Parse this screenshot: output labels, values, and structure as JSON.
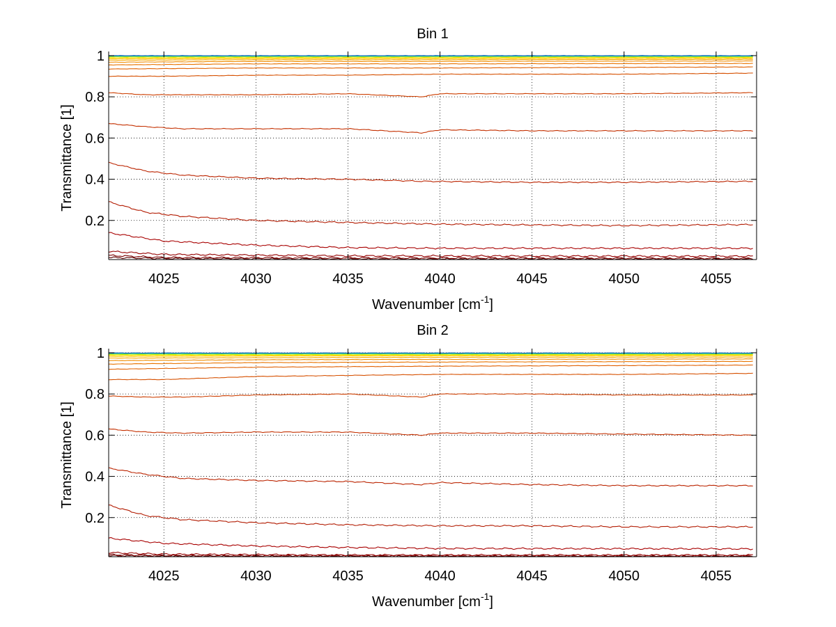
{
  "chart_data": [
    {
      "type": "line",
      "title": "Bin 1",
      "xlabel": "Wavenumber [cm",
      "xlabel_sup": "-1",
      "xlabel_end": "]",
      "ylabel": "Transmittance [1]",
      "xlim": [
        4022,
        4057.2
      ],
      "ylim": [
        0.01,
        1.02
      ],
      "xticks": [
        4025,
        4030,
        4035,
        4040,
        4045,
        4050,
        4055
      ],
      "yticks": [
        0.2,
        0.4,
        0.6,
        0.8,
        1
      ],
      "ytick_labels": [
        "0.2",
        "0.4",
        "0.6",
        "0.8",
        "1"
      ],
      "grid": true,
      "x_range": [
        4022,
        4057
      ],
      "series": [
        {
          "color": "#5a0000",
          "points": [
            [
              4022,
              0.02
            ],
            [
              4025,
              0.015
            ],
            [
              4035,
              0.012
            ],
            [
              4057,
              0.012
            ]
          ]
        },
        {
          "color": "#7a0000",
          "points": [
            [
              4022,
              0.03
            ],
            [
              4025,
              0.02
            ],
            [
              4035,
              0.018
            ],
            [
              4057,
              0.016
            ]
          ]
        },
        {
          "color": "#950000",
          "points": [
            [
              4022,
              0.05
            ],
            [
              4025,
              0.035
            ],
            [
              4035,
              0.028
            ],
            [
              4057,
              0.026
            ]
          ]
        },
        {
          "color": "#a80000",
          "points": [
            [
              4022,
              0.14
            ],
            [
              4025,
              0.1
            ],
            [
              4030,
              0.08
            ],
            [
              4035,
              0.068
            ],
            [
              4040,
              0.065
            ],
            [
              4057,
              0.065
            ]
          ]
        },
        {
          "color": "#b21a00",
          "points": [
            [
              4022,
              0.29
            ],
            [
              4024,
              0.24
            ],
            [
              4026,
              0.22
            ],
            [
              4030,
              0.2
            ],
            [
              4035,
              0.19
            ],
            [
              4040,
              0.182
            ],
            [
              4045,
              0.178
            ],
            [
              4050,
              0.175
            ],
            [
              4057,
              0.18
            ]
          ]
        },
        {
          "color": "#bb2400",
          "points": [
            [
              4022,
              0.48
            ],
            [
              4024,
              0.44
            ],
            [
              4026,
              0.42
            ],
            [
              4030,
              0.405
            ],
            [
              4035,
              0.4
            ],
            [
              4039,
              0.39
            ],
            [
              4045,
              0.385
            ],
            [
              4050,
              0.385
            ],
            [
              4057,
              0.39
            ]
          ]
        },
        {
          "color": "#c43000",
          "points": [
            [
              4022,
              0.67
            ],
            [
              4024,
              0.655
            ],
            [
              4026,
              0.645
            ],
            [
              4030,
              0.645
            ],
            [
              4035,
              0.645
            ],
            [
              4039,
              0.625
            ],
            [
              4040,
              0.64
            ],
            [
              4045,
              0.635
            ],
            [
              4050,
              0.635
            ],
            [
              4057,
              0.635
            ]
          ]
        },
        {
          "color": "#cc3e00",
          "points": [
            [
              4022,
              0.82
            ],
            [
              4024,
              0.81
            ],
            [
              4026,
              0.81
            ],
            [
              4030,
              0.81
            ],
            [
              4035,
              0.815
            ],
            [
              4039,
              0.8
            ],
            [
              4040,
              0.815
            ],
            [
              4045,
              0.815
            ],
            [
              4050,
              0.815
            ],
            [
              4057,
              0.82
            ]
          ]
        },
        {
          "color": "#d65000",
          "points": [
            [
              4022,
              0.9
            ],
            [
              4025,
              0.9
            ],
            [
              4030,
              0.905
            ],
            [
              4035,
              0.905
            ],
            [
              4040,
              0.91
            ],
            [
              4045,
              0.91
            ],
            [
              4050,
              0.91
            ],
            [
              4057,
              0.915
            ]
          ]
        },
        {
          "color": "#e06000",
          "points": [
            [
              4022,
              0.935
            ],
            [
              4030,
              0.94
            ],
            [
              4040,
              0.94
            ],
            [
              4057,
              0.945
            ]
          ]
        },
        {
          "color": "#e87400",
          "points": [
            [
              4022,
              0.955
            ],
            [
              4030,
              0.96
            ],
            [
              4040,
              0.96
            ],
            [
              4057,
              0.962
            ]
          ]
        },
        {
          "color": "#f08c00",
          "points": [
            [
              4022,
              0.968
            ],
            [
              4030,
              0.972
            ],
            [
              4040,
              0.972
            ],
            [
              4057,
              0.974
            ]
          ]
        },
        {
          "color": "#f7a800",
          "points": [
            [
              4022,
              0.978
            ],
            [
              4030,
              0.98
            ],
            [
              4040,
              0.98
            ],
            [
              4057,
              0.982
            ]
          ]
        },
        {
          "color": "#fcc800",
          "points": [
            [
              4022,
              0.985
            ],
            [
              4030,
              0.986
            ],
            [
              4040,
              0.986
            ],
            [
              4057,
              0.987
            ]
          ]
        },
        {
          "color": "#ffe000",
          "points": [
            [
              4022,
              0.99
            ],
            [
              4030,
              0.99
            ],
            [
              4040,
              0.99
            ],
            [
              4057,
              0.991
            ]
          ]
        },
        {
          "color": "#c8f000",
          "points": [
            [
              4022,
              0.994
            ],
            [
              4057,
              0.994
            ]
          ]
        },
        {
          "color": "#70e060",
          "points": [
            [
              4022,
              0.996
            ],
            [
              4057,
              0.996
            ]
          ]
        },
        {
          "color": "#20c8c8",
          "points": [
            [
              4022,
              0.998
            ],
            [
              4057,
              0.998
            ]
          ]
        },
        {
          "color": "#1060b0",
          "points": [
            [
              4022,
              1.0
            ],
            [
              4057,
              1.0
            ]
          ]
        }
      ]
    },
    {
      "type": "line",
      "title": "Bin 2",
      "xlabel": "Wavenumber [cm",
      "xlabel_sup": "-1",
      "xlabel_end": "]",
      "ylabel": "Transmittance [1]",
      "xlim": [
        4022,
        4057.2
      ],
      "ylim": [
        0.01,
        1.02
      ],
      "xticks": [
        4025,
        4030,
        4035,
        4040,
        4045,
        4050,
        4055
      ],
      "yticks": [
        0.2,
        0.4,
        0.6,
        0.8,
        1
      ],
      "ytick_labels": [
        "0.2",
        "0.4",
        "0.6",
        "0.8",
        "1"
      ],
      "grid": true,
      "x_range": [
        4022,
        4057
      ],
      "series": [
        {
          "color": "#5a0000",
          "points": [
            [
              4022,
              0.015
            ],
            [
              4025,
              0.012
            ],
            [
              4057,
              0.01
            ]
          ]
        },
        {
          "color": "#7a0000",
          "points": [
            [
              4022,
              0.02
            ],
            [
              4025,
              0.016
            ],
            [
              4057,
              0.014
            ]
          ]
        },
        {
          "color": "#950000",
          "points": [
            [
              4022,
              0.03
            ],
            [
              4025,
              0.022
            ],
            [
              4035,
              0.018
            ],
            [
              4057,
              0.018
            ]
          ]
        },
        {
          "color": "#a80000",
          "points": [
            [
              4022,
              0.1
            ],
            [
              4025,
              0.075
            ],
            [
              4030,
              0.062
            ],
            [
              4035,
              0.055
            ],
            [
              4040,
              0.05
            ],
            [
              4057,
              0.048
            ]
          ]
        },
        {
          "color": "#b21a00",
          "points": [
            [
              4022,
              0.26
            ],
            [
              4024,
              0.21
            ],
            [
              4026,
              0.19
            ],
            [
              4030,
              0.175
            ],
            [
              4035,
              0.165
            ],
            [
              4040,
              0.16
            ],
            [
              4045,
              0.16
            ],
            [
              4050,
              0.155
            ],
            [
              4057,
              0.155
            ]
          ]
        },
        {
          "color": "#bb2400",
          "points": [
            [
              4022,
              0.44
            ],
            [
              4024,
              0.41
            ],
            [
              4026,
              0.39
            ],
            [
              4030,
              0.38
            ],
            [
              4035,
              0.375
            ],
            [
              4039,
              0.36
            ],
            [
              4040,
              0.37
            ],
            [
              4045,
              0.36
            ],
            [
              4050,
              0.355
            ],
            [
              4057,
              0.355
            ]
          ]
        },
        {
          "color": "#c43000",
          "points": [
            [
              4022,
              0.63
            ],
            [
              4024,
              0.615
            ],
            [
              4026,
              0.61
            ],
            [
              4030,
              0.615
            ],
            [
              4035,
              0.615
            ],
            [
              4039,
              0.6
            ],
            [
              4040,
              0.61
            ],
            [
              4045,
              0.61
            ],
            [
              4050,
              0.605
            ],
            [
              4057,
              0.6
            ]
          ]
        },
        {
          "color": "#cc3e00",
          "points": [
            [
              4022,
              0.79
            ],
            [
              4024,
              0.785
            ],
            [
              4026,
              0.785
            ],
            [
              4030,
              0.795
            ],
            [
              4035,
              0.8
            ],
            [
              4039,
              0.785
            ],
            [
              4040,
              0.8
            ],
            [
              4045,
              0.8
            ],
            [
              4050,
              0.795
            ],
            [
              4057,
              0.795
            ]
          ]
        },
        {
          "color": "#d65000",
          "points": [
            [
              4022,
              0.87
            ],
            [
              4025,
              0.87
            ],
            [
              4030,
              0.885
            ],
            [
              4035,
              0.89
            ],
            [
              4040,
              0.895
            ],
            [
              4045,
              0.895
            ],
            [
              4050,
              0.895
            ],
            [
              4057,
              0.9
            ]
          ]
        },
        {
          "color": "#e06000",
          "points": [
            [
              4022,
              0.92
            ],
            [
              4030,
              0.93
            ],
            [
              4040,
              0.935
            ],
            [
              4057,
              0.94
            ]
          ]
        },
        {
          "color": "#e87400",
          "points": [
            [
              4022,
              0.945
            ],
            [
              4030,
              0.952
            ],
            [
              4040,
              0.955
            ],
            [
              4057,
              0.958
            ]
          ]
        },
        {
          "color": "#f08c00",
          "points": [
            [
              4022,
              0.962
            ],
            [
              4030,
              0.966
            ],
            [
              4040,
              0.968
            ],
            [
              4057,
              0.97
            ]
          ]
        },
        {
          "color": "#f7a800",
          "points": [
            [
              4022,
              0.974
            ],
            [
              4030,
              0.976
            ],
            [
              4040,
              0.978
            ],
            [
              4057,
              0.979
            ]
          ]
        },
        {
          "color": "#fcc800",
          "points": [
            [
              4022,
              0.982
            ],
            [
              4030,
              0.984
            ],
            [
              4040,
              0.985
            ],
            [
              4057,
              0.986
            ]
          ]
        },
        {
          "color": "#ffe000",
          "points": [
            [
              4022,
              0.988
            ],
            [
              4057,
              0.99
            ]
          ]
        },
        {
          "color": "#c8f000",
          "points": [
            [
              4022,
              0.992
            ],
            [
              4057,
              0.993
            ]
          ]
        },
        {
          "color": "#70e060",
          "points": [
            [
              4022,
              0.995
            ],
            [
              4057,
              0.995
            ]
          ]
        },
        {
          "color": "#20c8c8",
          "points": [
            [
              4022,
              0.997
            ],
            [
              4057,
              0.997
            ]
          ]
        },
        {
          "color": "#1060b0",
          "points": [
            [
              4022,
              0.999
            ],
            [
              4057,
              0.999
            ]
          ]
        }
      ]
    }
  ]
}
